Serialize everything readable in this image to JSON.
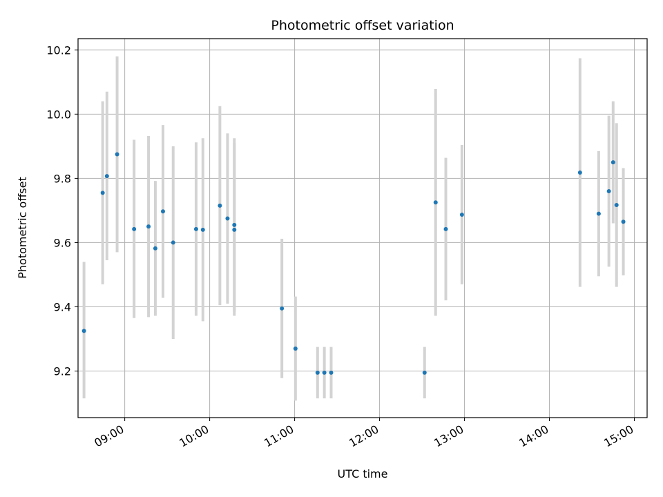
{
  "chart_data": {
    "type": "scatter",
    "title": "Photometric offset variation",
    "xlabel": "UTC time",
    "ylabel": "Photometric offset",
    "grid": true,
    "xlim": [
      8.45,
      15.15
    ],
    "ylim": [
      9.055,
      10.235
    ],
    "x_ticks": [
      {
        "value": 9,
        "label": "09:00"
      },
      {
        "value": 10,
        "label": "10:00"
      },
      {
        "value": 11,
        "label": "11:00"
      },
      {
        "value": 12,
        "label": "12:00"
      },
      {
        "value": 13,
        "label": "13:00"
      },
      {
        "value": 14,
        "label": "14:00"
      },
      {
        "value": 15,
        "label": "15:00"
      }
    ],
    "y_ticks": [
      {
        "value": 9.2,
        "label": "9.2"
      },
      {
        "value": 9.4,
        "label": "9.4"
      },
      {
        "value": 9.6,
        "label": "9.6"
      },
      {
        "value": 9.8,
        "label": "9.8"
      },
      {
        "value": 10.0,
        "label": "10.0"
      },
      {
        "value": 10.2,
        "label": "10.2"
      }
    ],
    "points": [
      {
        "t": 8.52,
        "y": 9.325,
        "lo": 9.115,
        "hi": 9.54
      },
      {
        "t": 8.74,
        "y": 9.755,
        "lo": 9.47,
        "hi": 10.04
      },
      {
        "t": 8.79,
        "y": 9.807,
        "lo": 9.545,
        "hi": 10.07
      },
      {
        "t": 8.91,
        "y": 9.875,
        "lo": 9.57,
        "hi": 10.18
      },
      {
        "t": 9.11,
        "y": 9.642,
        "lo": 9.365,
        "hi": 9.92
      },
      {
        "t": 9.28,
        "y": 9.65,
        "lo": 9.368,
        "hi": 9.932
      },
      {
        "t": 9.36,
        "y": 9.582,
        "lo": 9.372,
        "hi": 9.792
      },
      {
        "t": 9.45,
        "y": 9.697,
        "lo": 9.428,
        "hi": 9.966
      },
      {
        "t": 9.57,
        "y": 9.6,
        "lo": 9.3,
        "hi": 9.9
      },
      {
        "t": 9.84,
        "y": 9.642,
        "lo": 9.372,
        "hi": 9.912
      },
      {
        "t": 9.92,
        "y": 9.64,
        "lo": 9.355,
        "hi": 9.925
      },
      {
        "t": 10.12,
        "y": 9.715,
        "lo": 9.405,
        "hi": 10.025
      },
      {
        "t": 10.21,
        "y": 9.675,
        "lo": 9.41,
        "hi": 9.94
      },
      {
        "t": 10.29,
        "y": 9.655,
        "lo": 9.385,
        "hi": 9.925
      },
      {
        "t": 10.29,
        "y": 9.64,
        "lo": 9.372,
        "hi": 9.91
      },
      {
        "t": 10.85,
        "y": 9.395,
        "lo": 9.178,
        "hi": 9.612
      },
      {
        "t": 11.01,
        "y": 9.27,
        "lo": 9.108,
        "hi": 9.432
      },
      {
        "t": 11.27,
        "y": 9.195,
        "lo": 9.115,
        "hi": 9.275
      },
      {
        "t": 11.35,
        "y": 9.195,
        "lo": 9.115,
        "hi": 9.275
      },
      {
        "t": 11.43,
        "y": 9.195,
        "lo": 9.115,
        "hi": 9.275
      },
      {
        "t": 12.53,
        "y": 9.195,
        "lo": 9.115,
        "hi": 9.275
      },
      {
        "t": 12.66,
        "y": 9.725,
        "lo": 9.372,
        "hi": 10.078
      },
      {
        "t": 12.78,
        "y": 9.642,
        "lo": 9.42,
        "hi": 9.864
      },
      {
        "t": 12.97,
        "y": 9.687,
        "lo": 9.47,
        "hi": 9.904
      },
      {
        "t": 14.36,
        "y": 9.818,
        "lo": 9.462,
        "hi": 10.174
      },
      {
        "t": 14.58,
        "y": 9.69,
        "lo": 9.495,
        "hi": 9.885
      },
      {
        "t": 14.7,
        "y": 9.76,
        "lo": 9.525,
        "hi": 9.995
      },
      {
        "t": 14.75,
        "y": 9.85,
        "lo": 9.66,
        "hi": 10.04
      },
      {
        "t": 14.79,
        "y": 9.717,
        "lo": 9.462,
        "hi": 9.972
      },
      {
        "t": 14.87,
        "y": 9.665,
        "lo": 9.498,
        "hi": 9.832
      }
    ],
    "marker_color": "#1f77b4",
    "errorbar_color": "#d3d3d3",
    "grid_color": "#b0b0b0"
  }
}
